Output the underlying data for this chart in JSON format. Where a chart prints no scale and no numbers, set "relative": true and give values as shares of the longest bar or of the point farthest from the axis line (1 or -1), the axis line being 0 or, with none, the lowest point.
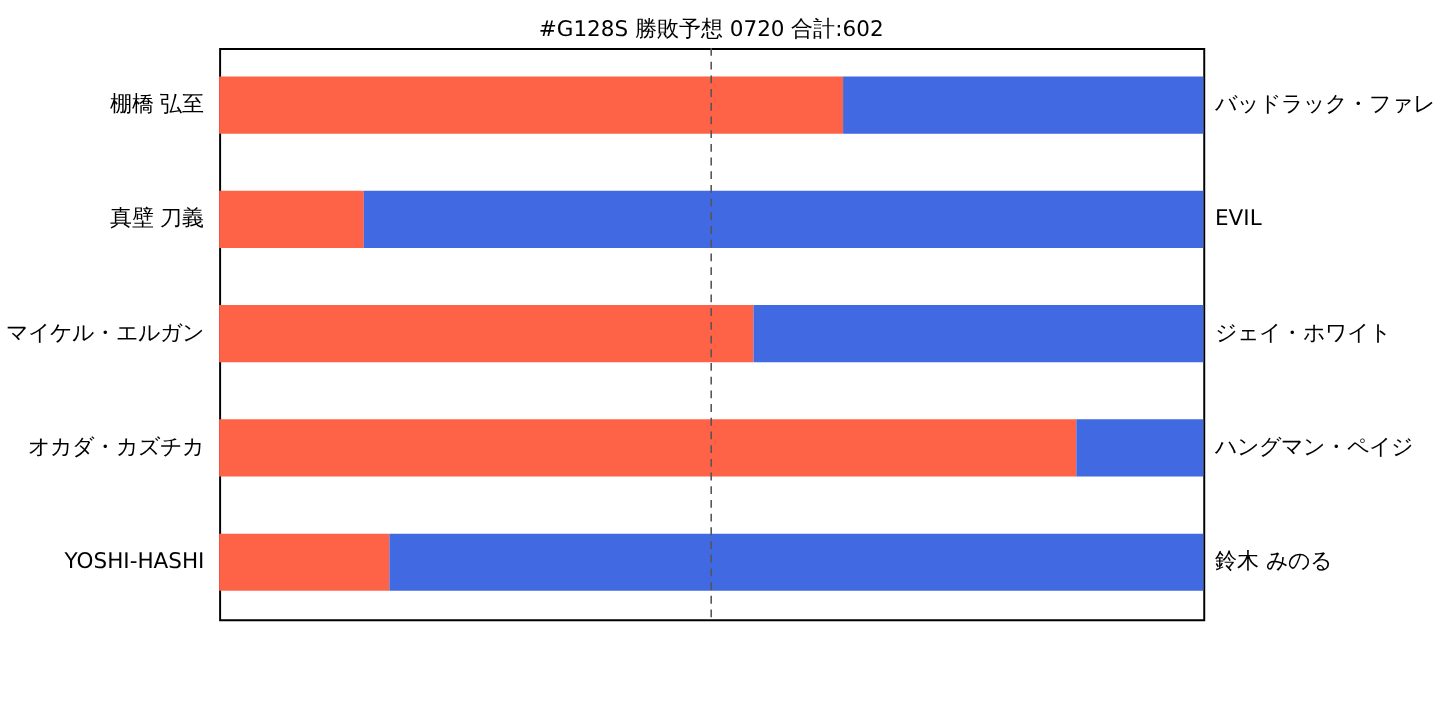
{
  "chart_data": {
    "type": "bar",
    "orientation": "horizontal",
    "stacked": true,
    "relative": true,
    "title": "#G128S 勝敗予想 0720 合計:602",
    "categories": [
      "棚橋 弘至",
      "真壁 刀義",
      "マイケル・エルガン",
      "オカダ・カズチカ",
      "YOSHI-HASHI"
    ],
    "y2_categories": [
      "バッドラック・ファレ",
      "EVIL",
      "ジェイ・ホワイト",
      "ハングマン・ペイジ",
      "鈴木 みのる"
    ],
    "series": [
      {
        "color": "#ff6347",
        "values": [
          0.634,
          0.147,
          0.543,
          0.871,
          0.173
        ]
      },
      {
        "color": "#4169e1",
        "values": [
          0.366,
          0.853,
          0.457,
          0.129,
          0.827
        ]
      }
    ],
    "ref_lines": [
      {
        "axis": "x",
        "value": 0.5,
        "line_style": "dashed",
        "color": "#555555"
      }
    ]
  }
}
